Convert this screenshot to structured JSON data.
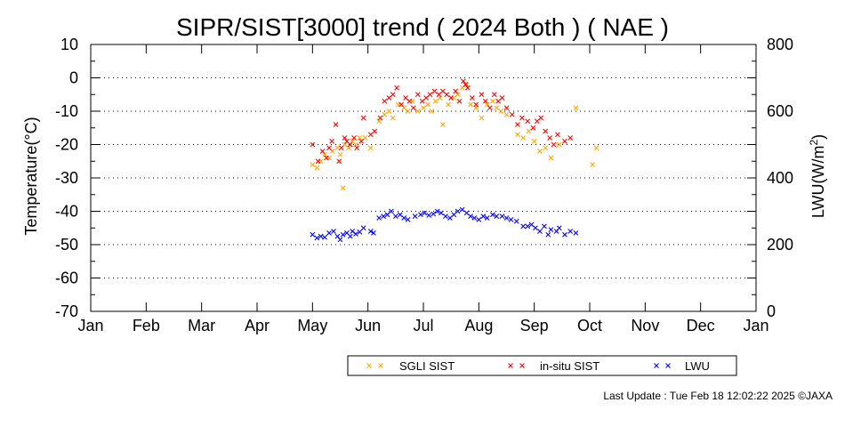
{
  "chart_data": {
    "type": "scatter",
    "title": "SIPR/SIST[3000] trend ( 2024 Both ) ( NAE )",
    "ylabel": "Temperature(°C)",
    "y2label_main": "LWU(W/m",
    "y2label_sup": "2",
    "y2label_end": ")",
    "ylim": [
      -70,
      10
    ],
    "y2lim": [
      0,
      800
    ],
    "xlim": [
      0,
      12
    ],
    "grid": "horizontal-dotted",
    "legend_position": "bottom-right",
    "x_ticks": [
      {
        "label": "Jan",
        "x": 0
      },
      {
        "label": "Feb",
        "x": 1
      },
      {
        "label": "Mar",
        "x": 2
      },
      {
        "label": "Apr",
        "x": 3
      },
      {
        "label": "May",
        "x": 4
      },
      {
        "label": "Jun",
        "x": 5
      },
      {
        "label": "Jul",
        "x": 6
      },
      {
        "label": "Aug",
        "x": 7
      },
      {
        "label": "Sep",
        "x": 8
      },
      {
        "label": "Oct",
        "x": 9
      },
      {
        "label": "Nov",
        "x": 10
      },
      {
        "label": "Dec",
        "x": 11
      },
      {
        "label": "Jan",
        "x": 12
      }
    ],
    "y_ticks": [
      "10",
      "0",
      "-10",
      "-20",
      "-30",
      "-40",
      "-50",
      "-60",
      "-70"
    ],
    "y2_ticks": [
      "800",
      "600",
      "400",
      "200",
      "0"
    ],
    "series": [
      {
        "name": "SGLI SIST",
        "color": "#ffa500",
        "axis": "left",
        "points": [
          [
            4.0,
            -26
          ],
          [
            4.08,
            -27
          ],
          [
            4.15,
            -25
          ],
          [
            4.22,
            -23
          ],
          [
            4.3,
            -24
          ],
          [
            4.36,
            -22
          ],
          [
            4.45,
            -21
          ],
          [
            4.5,
            -23
          ],
          [
            4.55,
            -33
          ],
          [
            4.58,
            -20
          ],
          [
            4.65,
            -21
          ],
          [
            4.72,
            -19
          ],
          [
            4.78,
            -20
          ],
          [
            4.85,
            -18
          ],
          [
            4.95,
            -18
          ],
          [
            5.05,
            -21
          ],
          [
            5.2,
            -13
          ],
          [
            5.3,
            -11
          ],
          [
            5.38,
            -10
          ],
          [
            5.45,
            -12
          ],
          [
            5.55,
            -8
          ],
          [
            5.65,
            -9
          ],
          [
            5.72,
            -10
          ],
          [
            5.8,
            -7
          ],
          [
            5.9,
            -10
          ],
          [
            6.0,
            -9
          ],
          [
            6.08,
            -8
          ],
          [
            6.15,
            -10
          ],
          [
            6.22,
            -7
          ],
          [
            6.3,
            -6
          ],
          [
            6.35,
            -14
          ],
          [
            6.45,
            -8
          ],
          [
            6.55,
            -6
          ],
          [
            6.62,
            -5
          ],
          [
            6.7,
            -3
          ],
          [
            6.78,
            -2
          ],
          [
            6.85,
            -8
          ],
          [
            6.95,
            -9
          ],
          [
            7.05,
            -12
          ],
          [
            7.15,
            -8
          ],
          [
            7.25,
            -7
          ],
          [
            7.32,
            -9
          ],
          [
            7.4,
            -10
          ],
          [
            7.5,
            -11
          ],
          [
            7.7,
            -17
          ],
          [
            7.8,
            -18
          ],
          [
            7.9,
            -16
          ],
          [
            8.0,
            -19
          ],
          [
            8.1,
            -22
          ],
          [
            8.2,
            -21
          ],
          [
            8.3,
            -24
          ],
          [
            8.45,
            -20
          ],
          [
            8.75,
            -9
          ],
          [
            9.05,
            -26
          ],
          [
            9.12,
            -21
          ]
        ]
      },
      {
        "name": "in-situ SIST",
        "color": "#ff0000",
        "axis": "left",
        "points": [
          [
            4.0,
            -20
          ],
          [
            4.1,
            -25
          ],
          [
            4.18,
            -22
          ],
          [
            4.25,
            -24
          ],
          [
            4.3,
            -21
          ],
          [
            4.35,
            -19
          ],
          [
            4.42,
            -14
          ],
          [
            4.48,
            -25
          ],
          [
            4.52,
            -21
          ],
          [
            4.58,
            -18
          ],
          [
            4.62,
            -19
          ],
          [
            4.68,
            -20
          ],
          [
            4.75,
            -18
          ],
          [
            4.8,
            -21
          ],
          [
            4.88,
            -19
          ],
          [
            4.92,
            -12
          ],
          [
            5.05,
            -17
          ],
          [
            5.12,
            -16
          ],
          [
            5.22,
            -12
          ],
          [
            5.3,
            -7
          ],
          [
            5.38,
            -6
          ],
          [
            5.45,
            -5
          ],
          [
            5.52,
            -3
          ],
          [
            5.6,
            -8
          ],
          [
            5.68,
            -6
          ],
          [
            5.75,
            -7
          ],
          [
            5.82,
            -9
          ],
          [
            5.9,
            -5
          ],
          [
            5.98,
            -7
          ],
          [
            6.05,
            -6
          ],
          [
            6.12,
            -5
          ],
          [
            6.2,
            -4
          ],
          [
            6.28,
            -5
          ],
          [
            6.35,
            -4
          ],
          [
            6.42,
            -5
          ],
          [
            6.5,
            -6
          ],
          [
            6.58,
            -4
          ],
          [
            6.65,
            -7
          ],
          [
            6.72,
            -1
          ],
          [
            6.76,
            -2
          ],
          [
            6.8,
            -3
          ],
          [
            6.88,
            -6
          ],
          [
            6.95,
            -8
          ],
          [
            7.05,
            -5
          ],
          [
            7.12,
            -7
          ],
          [
            7.2,
            -9
          ],
          [
            7.28,
            -5
          ],
          [
            7.35,
            -7
          ],
          [
            7.42,
            -6
          ],
          [
            7.5,
            -9
          ],
          [
            7.6,
            -11
          ],
          [
            7.7,
            -14
          ],
          [
            7.78,
            -12
          ],
          [
            7.88,
            -13
          ],
          [
            7.98,
            -15
          ],
          [
            8.05,
            -13
          ],
          [
            8.12,
            -12
          ],
          [
            8.2,
            -16
          ],
          [
            8.28,
            -18
          ],
          [
            8.35,
            -20
          ],
          [
            8.42,
            -17
          ],
          [
            8.55,
            -19
          ],
          [
            8.65,
            -18
          ]
        ]
      },
      {
        "name": "LWU",
        "color": "#0000ff",
        "axis": "right",
        "points": [
          [
            4.0,
            230
          ],
          [
            4.08,
            220
          ],
          [
            4.15,
            225
          ],
          [
            4.22,
            222
          ],
          [
            4.3,
            235
          ],
          [
            4.38,
            240
          ],
          [
            4.45,
            225
          ],
          [
            4.5,
            215
          ],
          [
            4.55,
            230
          ],
          [
            4.62,
            235
          ],
          [
            4.68,
            225
          ],
          [
            4.72,
            240
          ],
          [
            4.78,
            232
          ],
          [
            4.85,
            238
          ],
          [
            4.92,
            250
          ],
          [
            5.05,
            240
          ],
          [
            5.1,
            235
          ],
          [
            5.2,
            280
          ],
          [
            5.28,
            285
          ],
          [
            5.35,
            290
          ],
          [
            5.42,
            300
          ],
          [
            5.5,
            285
          ],
          [
            5.58,
            290
          ],
          [
            5.65,
            280
          ],
          [
            5.72,
            275
          ],
          [
            5.85,
            285
          ],
          [
            5.95,
            290
          ],
          [
            6.02,
            295
          ],
          [
            6.1,
            288
          ],
          [
            6.18,
            292
          ],
          [
            6.25,
            300
          ],
          [
            6.32,
            295
          ],
          [
            6.4,
            285
          ],
          [
            6.48,
            280
          ],
          [
            6.55,
            290
          ],
          [
            6.62,
            300
          ],
          [
            6.7,
            305
          ],
          [
            6.78,
            295
          ],
          [
            6.85,
            285
          ],
          [
            6.92,
            280
          ],
          [
            7.0,
            275
          ],
          [
            7.08,
            285
          ],
          [
            7.15,
            280
          ],
          [
            7.25,
            290
          ],
          [
            7.32,
            285
          ],
          [
            7.42,
            285
          ],
          [
            7.5,
            280
          ],
          [
            7.58,
            275
          ],
          [
            7.68,
            270
          ],
          [
            7.8,
            255
          ],
          [
            7.88,
            255
          ],
          [
            7.95,
            260
          ],
          [
            8.02,
            250
          ],
          [
            8.1,
            240
          ],
          [
            8.18,
            255
          ],
          [
            8.25,
            230
          ],
          [
            8.3,
            245
          ],
          [
            8.4,
            240
          ],
          [
            8.45,
            250
          ],
          [
            8.55,
            230
          ],
          [
            8.65,
            240
          ],
          [
            8.75,
            235
          ]
        ]
      }
    ]
  },
  "footer": {
    "last_update": "Last Update : Tue Feb 18 12:02:22 2025 ©JAXA"
  }
}
